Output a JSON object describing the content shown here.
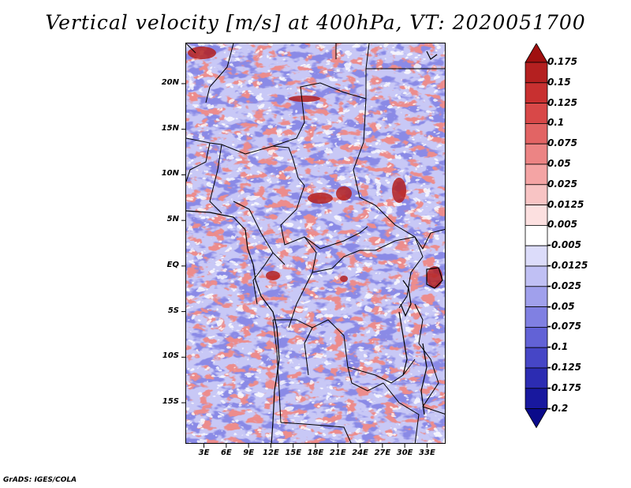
{
  "title": "Vertical velocity [m/s] at 400hPa, VT: 2020051700",
  "credit": "GrADS: IGES/COLA",
  "map": {
    "lat_range": [
      -19.5,
      24.5
    ],
    "lon_range": [
      0.5,
      35.5
    ],
    "lat_ticks": [
      {
        "value": 20,
        "label": "20N"
      },
      {
        "value": 15,
        "label": "15N"
      },
      {
        "value": 10,
        "label": "10N"
      },
      {
        "value": 5,
        "label": "5N"
      },
      {
        "value": 0,
        "label": "EQ"
      },
      {
        "value": -5,
        "label": "5S"
      },
      {
        "value": -10,
        "label": "10S"
      },
      {
        "value": -15,
        "label": "15S"
      }
    ],
    "lon_ticks": [
      {
        "value": 3,
        "label": "3E"
      },
      {
        "value": 6,
        "label": "6E"
      },
      {
        "value": 9,
        "label": "9E"
      },
      {
        "value": 12,
        "label": "12E"
      },
      {
        "value": 15,
        "label": "15E"
      },
      {
        "value": 18,
        "label": "18E"
      },
      {
        "value": 21,
        "label": "21E"
      },
      {
        "value": 24,
        "label": "24E"
      },
      {
        "value": 27,
        "label": "27E"
      },
      {
        "value": 30,
        "label": "30E"
      },
      {
        "value": 33,
        "label": "33E"
      }
    ]
  },
  "colorbar": {
    "levels": [
      "0.175",
      "0.15",
      "0.125",
      "0.1",
      "0.075",
      "0.05",
      "0.025",
      "0.0125",
      "0.005",
      "-0.005",
      "-0.0125",
      "-0.025",
      "-0.05",
      "-0.075",
      "-0.1",
      "-0.125",
      "-0.175",
      "-0.2"
    ],
    "colors": [
      "#a01010",
      "#b42020",
      "#c83030",
      "#d84848",
      "#e26464",
      "#ec8484",
      "#f4a4a4",
      "#f8c4c4",
      "#fce0e0",
      "#ffffff",
      "#dcdcfa",
      "#c0c0f4",
      "#a0a0ec",
      "#8080e2",
      "#6262d6",
      "#4646c6",
      "#2c2cb2",
      "#18189e",
      "#0a0a8a"
    ]
  }
}
